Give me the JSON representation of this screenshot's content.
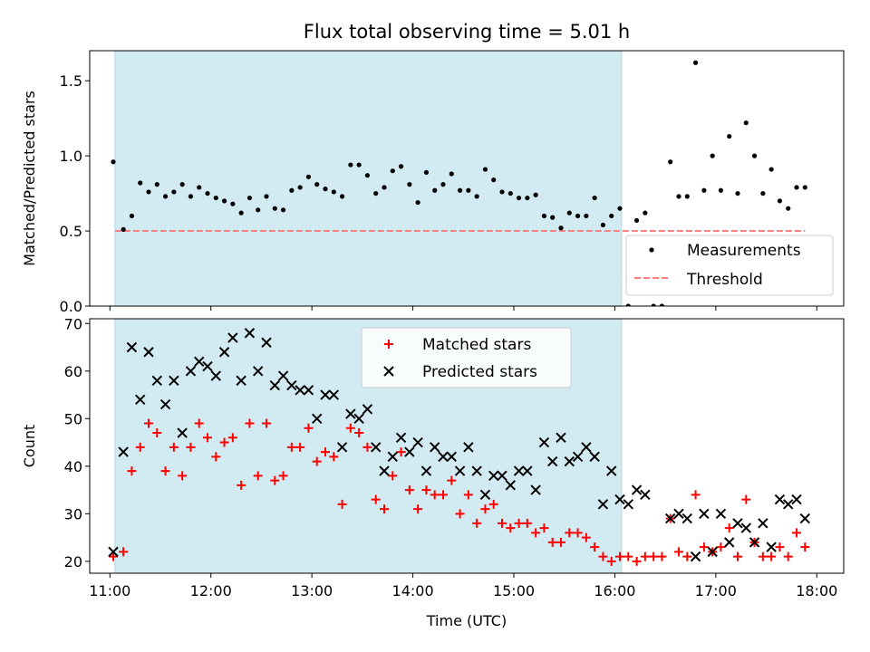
{
  "title": "Flux total observing time = 5.01 h",
  "colors": {
    "band": "#add8e6",
    "measurement": "#000000",
    "threshold": "#ff7f7f",
    "matched": "#ff0000",
    "predicted": "#000000"
  },
  "chart_data": [
    {
      "type": "scatter",
      "ylabel": "Matched/Predicted stars",
      "ylim": [
        0,
        1.7
      ],
      "xlim": [
        "10:48",
        "18:16"
      ],
      "yticks": [
        {
          "v": 0,
          "label": "0.0"
        },
        {
          "v": 0.5,
          "label": "0.5"
        },
        {
          "v": 1.0,
          "label": "1.0"
        },
        {
          "v": 1.5,
          "label": "1.5"
        }
      ],
      "band": {
        "start": "11:03",
        "end": "16:04"
      },
      "threshold": 0.5,
      "legend_position": "lower right",
      "legend": {
        "measurements": "Measurements",
        "threshold": "Threshold"
      },
      "series": [
        {
          "name": "Measurements",
          "points": [
            [
              "11:02",
              0.96
            ],
            [
              "11:08",
              0.51
            ],
            [
              "11:13",
              0.6
            ],
            [
              "11:18",
              0.82
            ],
            [
              "11:23",
              0.76
            ],
            [
              "11:28",
              0.81
            ],
            [
              "11:33",
              0.73
            ],
            [
              "11:38",
              0.76
            ],
            [
              "11:43",
              0.81
            ],
            [
              "11:48",
              0.73
            ],
            [
              "11:53",
              0.79
            ],
            [
              "11:58",
              0.75
            ],
            [
              "12:03",
              0.72
            ],
            [
              "12:08",
              0.7
            ],
            [
              "12:13",
              0.68
            ],
            [
              "12:18",
              0.62
            ],
            [
              "12:23",
              0.72
            ],
            [
              "12:28",
              0.64
            ],
            [
              "12:33",
              0.73
            ],
            [
              "12:38",
              0.65
            ],
            [
              "12:43",
              0.64
            ],
            [
              "12:48",
              0.77
            ],
            [
              "12:53",
              0.79
            ],
            [
              "12:58",
              0.86
            ],
            [
              "13:03",
              0.81
            ],
            [
              "13:08",
              0.78
            ],
            [
              "13:13",
              0.76
            ],
            [
              "13:18",
              0.73
            ],
            [
              "13:23",
              0.94
            ],
            [
              "13:28",
              0.94
            ],
            [
              "13:33",
              0.87
            ],
            [
              "13:38",
              0.75
            ],
            [
              "13:43",
              0.79
            ],
            [
              "13:48",
              0.9
            ],
            [
              "13:53",
              0.93
            ],
            [
              "13:58",
              0.81
            ],
            [
              "14:03",
              0.69
            ],
            [
              "14:08",
              0.89
            ],
            [
              "14:13",
              0.77
            ],
            [
              "14:18",
              0.81
            ],
            [
              "14:23",
              0.88
            ],
            [
              "14:28",
              0.77
            ],
            [
              "14:33",
              0.77
            ],
            [
              "14:38",
              0.73
            ],
            [
              "14:43",
              0.91
            ],
            [
              "14:48",
              0.84
            ],
            [
              "14:53",
              0.76
            ],
            [
              "14:58",
              0.75
            ],
            [
              "15:03",
              0.72
            ],
            [
              "15:08",
              0.72
            ],
            [
              "15:13",
              0.74
            ],
            [
              "15:18",
              0.6
            ],
            [
              "15:23",
              0.59
            ],
            [
              "15:28",
              0.52
            ],
            [
              "15:33",
              0.62
            ],
            [
              "15:38",
              0.6
            ],
            [
              "15:43",
              0.6
            ],
            [
              "15:48",
              0.72
            ],
            [
              "15:53",
              0.54
            ],
            [
              "15:58",
              0.6
            ],
            [
              "16:03",
              0.65
            ],
            [
              "16:08",
              0.0
            ],
            [
              "16:13",
              0.57
            ],
            [
              "16:18",
              0.62
            ],
            [
              "16:23",
              0.0
            ],
            [
              "16:28",
              0.0
            ],
            [
              "16:33",
              0.96
            ],
            [
              "16:38",
              0.73
            ],
            [
              "16:43",
              0.73
            ],
            [
              "16:48",
              1.62
            ],
            [
              "16:53",
              0.77
            ],
            [
              "16:58",
              1.0
            ],
            [
              "17:03",
              0.77
            ],
            [
              "17:08",
              1.13
            ],
            [
              "17:13",
              0.75
            ],
            [
              "17:18",
              1.22
            ],
            [
              "17:23",
              1.0
            ],
            [
              "17:28",
              0.75
            ],
            [
              "17:33",
              0.91
            ],
            [
              "17:38",
              0.7
            ],
            [
              "17:43",
              0.65
            ],
            [
              "17:48",
              0.79
            ],
            [
              "17:53",
              0.79
            ]
          ]
        }
      ]
    },
    {
      "type": "scatter",
      "xlabel": "Time (UTC)",
      "ylabel": "Count",
      "ylim": [
        17.5,
        71
      ],
      "xlim": [
        "10:48",
        "18:16"
      ],
      "xticks": [
        "11:00",
        "12:00",
        "13:00",
        "14:00",
        "15:00",
        "16:00",
        "17:00",
        "18:00"
      ],
      "yticks": [
        {
          "v": 20,
          "label": "20"
        },
        {
          "v": 30,
          "label": "30"
        },
        {
          "v": 40,
          "label": "40"
        },
        {
          "v": 50,
          "label": "50"
        },
        {
          "v": 60,
          "label": "60"
        },
        {
          "v": 70,
          "label": "70"
        }
      ],
      "band": {
        "start": "11:03",
        "end": "16:04"
      },
      "legend_position": "upper center",
      "legend": {
        "matched": "Matched stars",
        "predicted": "Predicted stars"
      },
      "series": [
        {
          "name": "Matched stars",
          "points": [
            [
              "11:02",
              21
            ],
            [
              "11:08",
              22
            ],
            [
              "11:13",
              39
            ],
            [
              "11:18",
              44
            ],
            [
              "11:23",
              49
            ],
            [
              "11:28",
              47
            ],
            [
              "11:33",
              39
            ],
            [
              "11:38",
              44
            ],
            [
              "11:43",
              38
            ],
            [
              "11:48",
              44
            ],
            [
              "11:53",
              49
            ],
            [
              "11:58",
              46
            ],
            [
              "12:03",
              42
            ],
            [
              "12:08",
              45
            ],
            [
              "12:13",
              46
            ],
            [
              "12:18",
              36
            ],
            [
              "12:23",
              49
            ],
            [
              "12:28",
              38
            ],
            [
              "12:33",
              49
            ],
            [
              "12:38",
              37
            ],
            [
              "12:43",
              38
            ],
            [
              "12:48",
              44
            ],
            [
              "12:53",
              44
            ],
            [
              "12:58",
              48
            ],
            [
              "13:03",
              41
            ],
            [
              "13:08",
              43
            ],
            [
              "13:13",
              42
            ],
            [
              "13:18",
              32
            ],
            [
              "13:23",
              48
            ],
            [
              "13:28",
              47
            ],
            [
              "13:33",
              44
            ],
            [
              "13:38",
              33
            ],
            [
              "13:43",
              31
            ],
            [
              "13:48",
              38
            ],
            [
              "13:53",
              43
            ],
            [
              "13:58",
              35
            ],
            [
              "14:03",
              31
            ],
            [
              "14:08",
              35
            ],
            [
              "14:13",
              34
            ],
            [
              "14:18",
              34
            ],
            [
              "14:23",
              37
            ],
            [
              "14:28",
              30
            ],
            [
              "14:33",
              34
            ],
            [
              "14:38",
              28
            ],
            [
              "14:43",
              31
            ],
            [
              "14:48",
              32
            ],
            [
              "14:53",
              28
            ],
            [
              "14:58",
              27
            ],
            [
              "15:03",
              28
            ],
            [
              "15:08",
              28
            ],
            [
              "15:13",
              26
            ],
            [
              "15:18",
              27
            ],
            [
              "15:23",
              24
            ],
            [
              "15:28",
              24
            ],
            [
              "15:33",
              26
            ],
            [
              "15:38",
              26
            ],
            [
              "15:43",
              25
            ],
            [
              "15:48",
              23
            ],
            [
              "15:53",
              21
            ],
            [
              "15:58",
              20
            ],
            [
              "16:03",
              21
            ],
            [
              "16:08",
              21
            ],
            [
              "16:13",
              20
            ],
            [
              "16:18",
              21
            ],
            [
              "16:23",
              21
            ],
            [
              "16:28",
              21
            ],
            [
              "16:33",
              29
            ],
            [
              "16:38",
              22
            ],
            [
              "16:43",
              21
            ],
            [
              "16:48",
              34
            ],
            [
              "16:53",
              23
            ],
            [
              "16:58",
              22
            ],
            [
              "17:03",
              23
            ],
            [
              "17:08",
              27
            ],
            [
              "17:13",
              21
            ],
            [
              "17:18",
              33
            ],
            [
              "17:23",
              24
            ],
            [
              "17:28",
              21
            ],
            [
              "17:33",
              21
            ],
            [
              "17:38",
              23
            ],
            [
              "17:43",
              21
            ],
            [
              "17:48",
              26
            ],
            [
              "17:53",
              23
            ]
          ]
        },
        {
          "name": "Predicted stars",
          "points": [
            [
              "11:02",
              22
            ],
            [
              "11:08",
              43
            ],
            [
              "11:13",
              65
            ],
            [
              "11:18",
              54
            ],
            [
              "11:23",
              64
            ],
            [
              "11:28",
              58
            ],
            [
              "11:33",
              53
            ],
            [
              "11:38",
              58
            ],
            [
              "11:43",
              47
            ],
            [
              "11:48",
              60
            ],
            [
              "11:53",
              62
            ],
            [
              "11:58",
              61
            ],
            [
              "12:03",
              59
            ],
            [
              "12:08",
              64
            ],
            [
              "12:13",
              67
            ],
            [
              "12:18",
              58
            ],
            [
              "12:23",
              68
            ],
            [
              "12:28",
              60
            ],
            [
              "12:33",
              66
            ],
            [
              "12:38",
              57
            ],
            [
              "12:43",
              59
            ],
            [
              "12:48",
              57
            ],
            [
              "12:53",
              56
            ],
            [
              "12:58",
              56
            ],
            [
              "13:03",
              50
            ],
            [
              "13:08",
              55
            ],
            [
              "13:13",
              55
            ],
            [
              "13:18",
              44
            ],
            [
              "13:23",
              51
            ],
            [
              "13:28",
              50
            ],
            [
              "13:33",
              52
            ],
            [
              "13:38",
              44
            ],
            [
              "13:43",
              39
            ],
            [
              "13:48",
              42
            ],
            [
              "13:53",
              46
            ],
            [
              "13:58",
              43
            ],
            [
              "14:03",
              45
            ],
            [
              "14:08",
              39
            ],
            [
              "14:13",
              44
            ],
            [
              "14:18",
              42
            ],
            [
              "14:23",
              42
            ],
            [
              "14:28",
              39
            ],
            [
              "14:33",
              44
            ],
            [
              "14:38",
              39
            ],
            [
              "14:43",
              34
            ],
            [
              "14:48",
              38
            ],
            [
              "14:53",
              38
            ],
            [
              "14:58",
              36
            ],
            [
              "15:03",
              39
            ],
            [
              "15:08",
              39
            ],
            [
              "15:13",
              35
            ],
            [
              "15:18",
              45
            ],
            [
              "15:23",
              41
            ],
            [
              "15:28",
              46
            ],
            [
              "15:33",
              41
            ],
            [
              "15:38",
              42
            ],
            [
              "15:43",
              44
            ],
            [
              "15:48",
              42
            ],
            [
              "15:53",
              32
            ],
            [
              "15:58",
              39
            ],
            [
              "16:03",
              33
            ],
            [
              "16:08",
              32
            ],
            [
              "16:13",
              35
            ],
            [
              "16:18",
              34
            ],
            [
              "16:33",
              29
            ],
            [
              "16:38",
              30
            ],
            [
              "16:43",
              29
            ],
            [
              "16:48",
              21
            ],
            [
              "16:53",
              30
            ],
            [
              "16:58",
              22
            ],
            [
              "17:03",
              30
            ],
            [
              "17:08",
              24
            ],
            [
              "17:13",
              28
            ],
            [
              "17:18",
              27
            ],
            [
              "17:23",
              24
            ],
            [
              "17:28",
              28
            ],
            [
              "17:33",
              23
            ],
            [
              "17:38",
              33
            ],
            [
              "17:43",
              32
            ],
            [
              "17:48",
              33
            ],
            [
              "17:53",
              29
            ]
          ]
        }
      ]
    }
  ]
}
